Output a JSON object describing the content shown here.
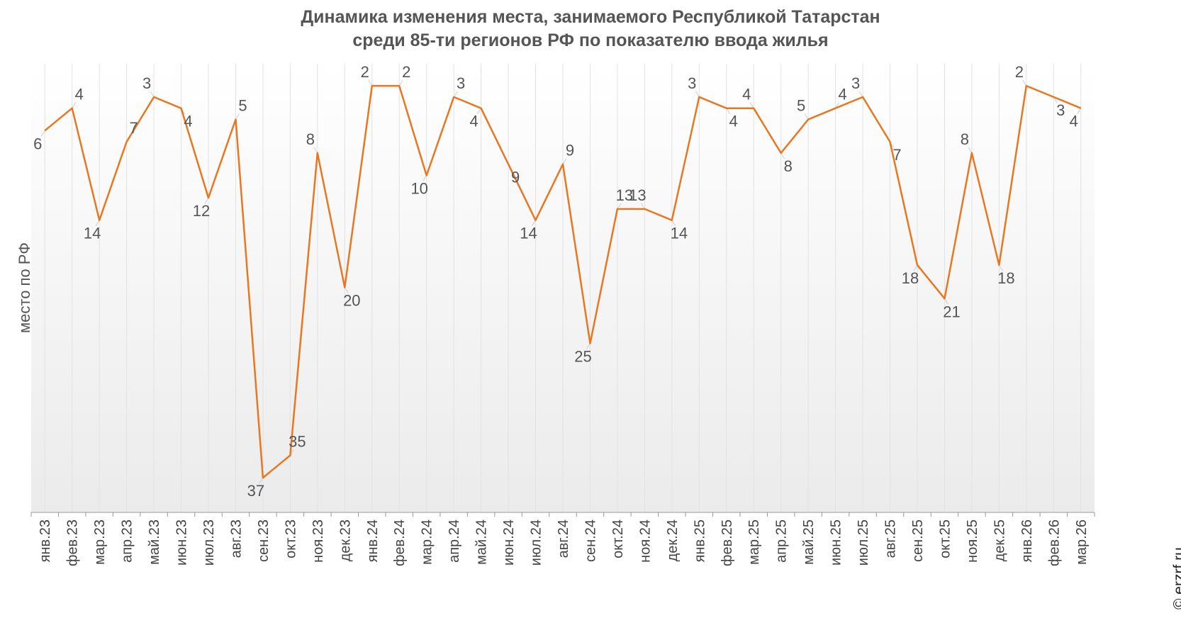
{
  "watermark": "© erzrf.ru",
  "chart_data": {
    "type": "line",
    "title_line1": "Динамика изменения места, занимаемого Республикой Татарстан",
    "title_line2": "среди 85-ти регионов РФ по показателю ввода жилья",
    "ylabel": "место по РФ",
    "xlabel": "",
    "y_inverted": true,
    "ylim": [
      0,
      40
    ],
    "grid": "vertical",
    "line_color": "#e87722",
    "categories": [
      "янв.23",
      "фев.23",
      "мар.23",
      "апр.23",
      "май.23",
      "июн.23",
      "июл.23",
      "авг.23",
      "сен.23",
      "окт.23",
      "ноя.23",
      "дек.23",
      "янв.24",
      "фев.24",
      "мар.24",
      "апр.24",
      "май.24",
      "июн.24",
      "июл.24",
      "авг.24",
      "сен.24",
      "окт.24",
      "ноя.24",
      "дек.24",
      "янв.25",
      "фев.25",
      "мар.25",
      "апр.25",
      "май.25",
      "июн.25",
      "июл.25",
      "авг.25",
      "сен.25",
      "окт.25",
      "ноя.25",
      "дек.25",
      "янв.26",
      "фев.26",
      "мар.26"
    ],
    "values": [
      6,
      4,
      14,
      7,
      3,
      4,
      12,
      5,
      37,
      35,
      8,
      20,
      2,
      2,
      10,
      3,
      4,
      9,
      14,
      9,
      25,
      13,
      13,
      14,
      3,
      4,
      4,
      8,
      5,
      4,
      3,
      7,
      18,
      21,
      8,
      18,
      2,
      3,
      4
    ]
  }
}
